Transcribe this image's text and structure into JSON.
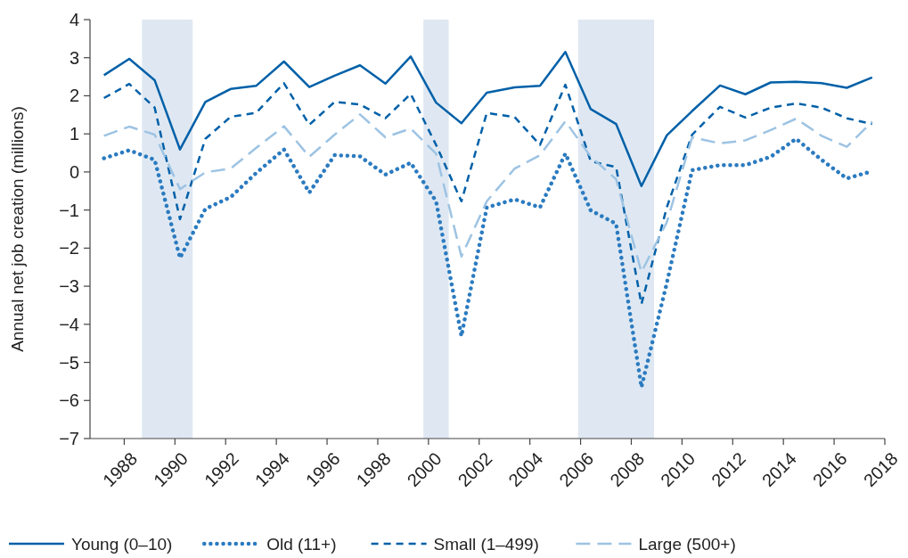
{
  "chart_data": {
    "type": "line",
    "ylabel": "Annual net job creation (millions)",
    "x": [
      1987.2,
      1988.2,
      1989.2,
      1990.2,
      1991.2,
      1992.2,
      1993.2,
      1994.3,
      1995.3,
      1996.3,
      1997.3,
      1998.3,
      1999.3,
      2000.3,
      2001.3,
      2002.3,
      2003.4,
      2004.4,
      2005.4,
      2006.4,
      2007.4,
      2008.4,
      2009.4,
      2010.4,
      2011.5,
      2012.5,
      2013.5,
      2014.5,
      2015.5,
      2016.5,
      2017.5
    ],
    "series": [
      {
        "name": "Young (0–10)",
        "color": "#0060a8",
        "line_style": "solid",
        "values": [
          2.54,
          2.97,
          2.41,
          0.59,
          1.84,
          2.18,
          2.26,
          2.9,
          2.23,
          2.53,
          2.8,
          2.32,
          3.03,
          1.82,
          1.28,
          2.08,
          2.22,
          2.26,
          3.15,
          1.65,
          1.26,
          -0.37,
          0.96,
          1.6,
          2.27,
          2.04,
          2.35,
          2.37,
          2.33,
          2.21,
          2.48
        ]
      },
      {
        "name": "Old (11+)",
        "color": "#2b7bc0",
        "line_style": "dotted",
        "values": [
          0.36,
          0.57,
          0.32,
          -2.26,
          -0.97,
          -0.66,
          -0.03,
          0.59,
          -0.54,
          0.44,
          0.41,
          -0.07,
          0.24,
          -0.77,
          -4.31,
          -0.93,
          -0.72,
          -0.93,
          0.48,
          -1.01,
          -1.36,
          -5.65,
          -2.92,
          0.05,
          0.18,
          0.18,
          0.4,
          0.87,
          0.32,
          -0.17,
          0.02
        ]
      },
      {
        "name": "Small (1–499)",
        "color": "#0060a8",
        "line_style": "dashed",
        "values": [
          1.94,
          2.31,
          1.69,
          -1.24,
          0.87,
          1.45,
          1.55,
          2.33,
          1.24,
          1.84,
          1.77,
          1.41,
          2.05,
          0.71,
          -0.77,
          1.55,
          1.44,
          0.71,
          2.29,
          0.28,
          0.13,
          -3.47,
          -0.93,
          0.98,
          1.71,
          1.43,
          1.69,
          1.8,
          1.69,
          1.41,
          1.26
        ]
      },
      {
        "name": "Large (500+)",
        "color": "#9dc3e3",
        "line_style": "longdashed",
        "values": [
          0.95,
          1.19,
          0.98,
          -0.45,
          -0.01,
          0.09,
          0.63,
          1.2,
          0.4,
          0.98,
          1.51,
          0.91,
          1.14,
          0.48,
          -2.22,
          -0.77,
          0.09,
          0.44,
          1.33,
          0.4,
          -0.19,
          -2.63,
          -1.32,
          0.91,
          0.75,
          0.83,
          1.1,
          1.4,
          0.95,
          0.66,
          1.32
        ]
      }
    ],
    "xlim": [
      1986.65,
      2018
    ],
    "xticks": [
      1988,
      1990,
      1992,
      1994,
      1996,
      1998,
      2000,
      2002,
      2004,
      2006,
      2008,
      2010,
      2012,
      2014,
      2016,
      2018
    ],
    "ylim": [
      -7,
      4
    ],
    "yticks": [
      {
        "value": -7,
        "label": "−7"
      },
      {
        "value": -6,
        "label": "−6"
      },
      {
        "value": -5,
        "label": "−5"
      },
      {
        "value": -4,
        "label": "−4"
      },
      {
        "value": -3,
        "label": "−3"
      },
      {
        "value": -2,
        "label": "−2"
      },
      {
        "value": -1,
        "label": "−1"
      },
      0,
      1,
      2,
      3,
      4
    ],
    "bands": [
      {
        "axis": "x",
        "from": 1988.7,
        "to": 1990.7,
        "color": "#dfe8f2"
      },
      {
        "axis": "x",
        "from": 1999.8,
        "to": 2000.8,
        "color": "#dfe8f2"
      },
      {
        "axis": "x",
        "from": 2005.9,
        "to": 2008.9,
        "color": "#dfe8f2"
      }
    ],
    "grid": false,
    "legend": "bottom"
  }
}
